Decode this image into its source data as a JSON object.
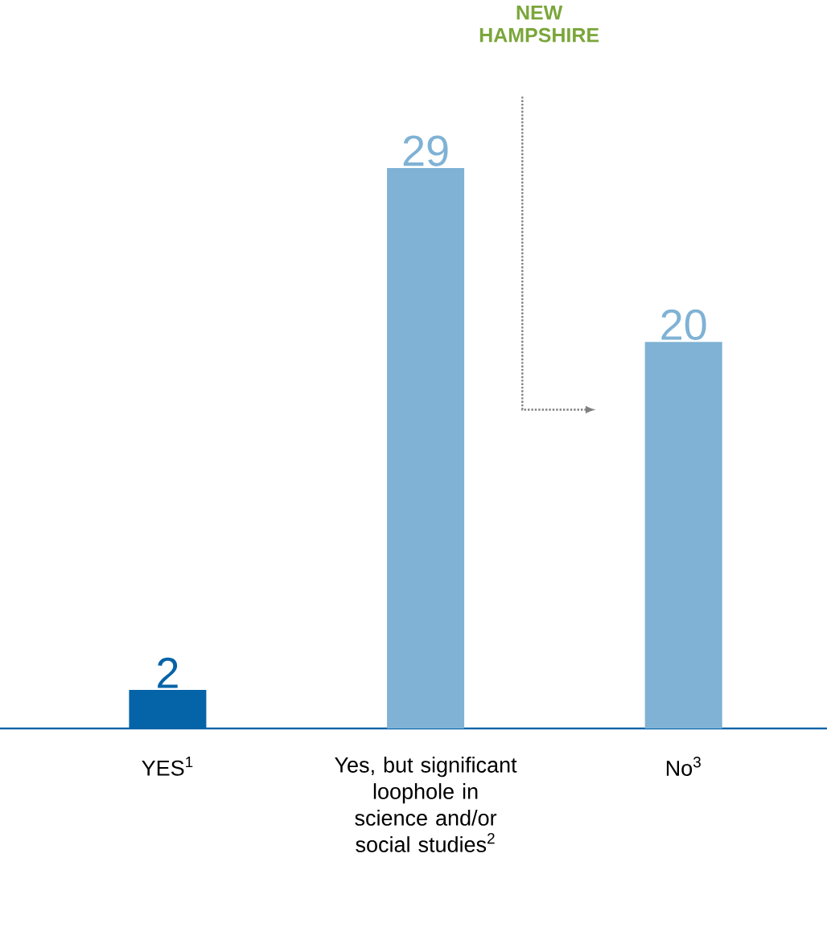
{
  "chart_data": {
    "type": "bar",
    "categories": [
      "YES$^{1}$",
      "Yes, but significant loophole in science and/or social studies$^{2}$",
      "No$^{3}$"
    ],
    "values": [
      2,
      29,
      20
    ],
    "colors": [
      "#0563a8",
      "#7fb2d5",
      "#7fb2d5"
    ],
    "data_labels": true,
    "annotations": [
      "NEW HAMPSHIRE"
    ]
  }
}
